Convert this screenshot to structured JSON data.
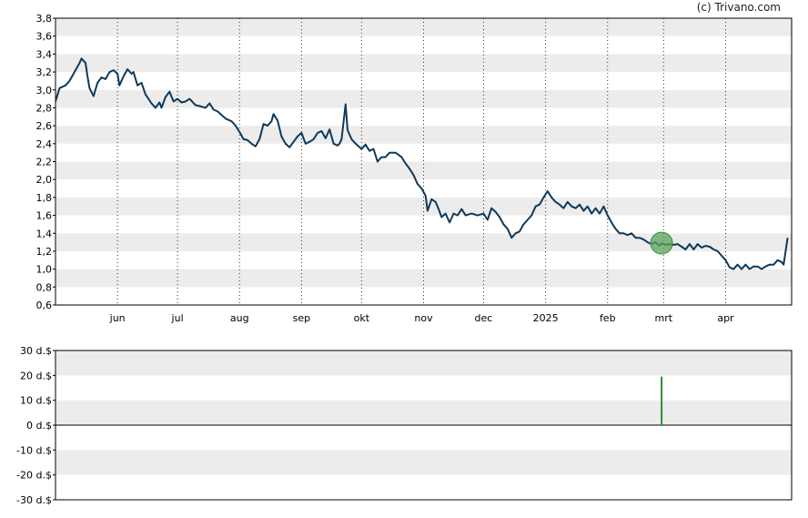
{
  "credit": "(c) Trivano.com",
  "chart_data": [
    {
      "type": "line",
      "title": "",
      "xlabel": "",
      "ylabel": "",
      "ylim": [
        0.6,
        3.8
      ],
      "y_ticks": [
        "3,8",
        "3,6",
        "3,4",
        "3,2",
        "3,0",
        "2,8",
        "2,6",
        "2,4",
        "2,2",
        "2,0",
        "1,8",
        "1,6",
        "1,4",
        "1,2",
        "1,0",
        "0,8",
        "0,6"
      ],
      "x_ticks": [
        {
          "label": "jun",
          "date": "2024-06-01"
        },
        {
          "label": "jul",
          "date": "2024-07-01"
        },
        {
          "label": "aug",
          "date": "2024-08-01"
        },
        {
          "label": "sep",
          "date": "2024-09-01"
        },
        {
          "label": "okt",
          "date": "2024-10-01"
        },
        {
          "label": "nov",
          "date": "2024-11-01"
        },
        {
          "label": "dec",
          "date": "2024-12-01"
        },
        {
          "label": "2025",
          "date": "2025-01-01"
        },
        {
          "label": "feb",
          "date": "2025-02-01"
        },
        {
          "label": "mrt",
          "date": "2025-03-01"
        },
        {
          "label": "apr",
          "date": "2025-04-01"
        }
      ],
      "xlim": [
        "2024-05-01",
        "2025-05-04"
      ],
      "grid": "alternating horizontal bands, dotted vertical lines",
      "line_color": "#0f3a5a",
      "marker": {
        "date": "2025-02-28",
        "value": 1.29,
        "color": "#5aa55a"
      },
      "series": [
        {
          "points": [
            [
              "2024-05-01",
              2.87
            ],
            [
              "2024-05-03",
              3.02
            ],
            [
              "2024-05-06",
              3.05
            ],
            [
              "2024-05-08",
              3.1
            ],
            [
              "2024-05-10",
              3.18
            ],
            [
              "2024-05-13",
              3.3
            ],
            [
              "2024-05-14",
              3.35
            ],
            [
              "2024-05-16",
              3.3
            ],
            [
              "2024-05-17",
              3.15
            ],
            [
              "2024-05-18",
              3.02
            ],
            [
              "2024-05-20",
              2.93
            ],
            [
              "2024-05-22",
              3.08
            ],
            [
              "2024-05-24",
              3.14
            ],
            [
              "2024-05-26",
              3.12
            ],
            [
              "2024-05-28",
              3.2
            ],
            [
              "2024-05-30",
              3.22
            ],
            [
              "2024-06-01",
              3.18
            ],
            [
              "2024-06-02",
              3.05
            ],
            [
              "2024-06-04",
              3.15
            ],
            [
              "2024-06-06",
              3.23
            ],
            [
              "2024-06-08",
              3.18
            ],
            [
              "2024-06-09",
              3.2
            ],
            [
              "2024-06-11",
              3.05
            ],
            [
              "2024-06-13",
              3.08
            ],
            [
              "2024-06-15",
              2.95
            ],
            [
              "2024-06-18",
              2.85
            ],
            [
              "2024-06-20",
              2.8
            ],
            [
              "2024-06-22",
              2.86
            ],
            [
              "2024-06-23",
              2.8
            ],
            [
              "2024-06-25",
              2.92
            ],
            [
              "2024-06-27",
              2.98
            ],
            [
              "2024-06-29",
              2.87
            ],
            [
              "2024-07-01",
              2.9
            ],
            [
              "2024-07-03",
              2.86
            ],
            [
              "2024-07-05",
              2.87
            ],
            [
              "2024-07-07",
              2.9
            ],
            [
              "2024-07-10",
              2.83
            ],
            [
              "2024-07-12",
              2.82
            ],
            [
              "2024-07-15",
              2.8
            ],
            [
              "2024-07-17",
              2.85
            ],
            [
              "2024-07-19",
              2.78
            ],
            [
              "2024-07-21",
              2.76
            ],
            [
              "2024-07-23",
              2.72
            ],
            [
              "2024-07-25",
              2.68
            ],
            [
              "2024-07-28",
              2.65
            ],
            [
              "2024-07-30",
              2.6
            ],
            [
              "2024-08-01",
              2.53
            ],
            [
              "2024-08-03",
              2.45
            ],
            [
              "2024-08-05",
              2.44
            ],
            [
              "2024-08-07",
              2.4
            ],
            [
              "2024-08-09",
              2.37
            ],
            [
              "2024-08-11",
              2.45
            ],
            [
              "2024-08-13",
              2.62
            ],
            [
              "2024-08-15",
              2.6
            ],
            [
              "2024-08-17",
              2.65
            ],
            [
              "2024-08-18",
              2.73
            ],
            [
              "2024-08-20",
              2.66
            ],
            [
              "2024-08-22",
              2.48
            ],
            [
              "2024-08-24",
              2.4
            ],
            [
              "2024-08-26",
              2.36
            ],
            [
              "2024-08-28",
              2.42
            ],
            [
              "2024-08-30",
              2.48
            ],
            [
              "2024-09-01",
              2.52
            ],
            [
              "2024-09-03",
              2.4
            ],
            [
              "2024-09-05",
              2.42
            ],
            [
              "2024-09-07",
              2.45
            ],
            [
              "2024-09-09",
              2.52
            ],
            [
              "2024-09-11",
              2.54
            ],
            [
              "2024-09-13",
              2.46
            ],
            [
              "2024-09-15",
              2.56
            ],
            [
              "2024-09-17",
              2.4
            ],
            [
              "2024-09-19",
              2.38
            ],
            [
              "2024-09-20",
              2.4
            ],
            [
              "2024-09-21",
              2.45
            ],
            [
              "2024-09-23",
              2.84
            ],
            [
              "2024-09-24",
              2.55
            ],
            [
              "2024-09-26",
              2.45
            ],
            [
              "2024-09-28",
              2.4
            ],
            [
              "2024-10-01",
              2.34
            ],
            [
              "2024-10-03",
              2.39
            ],
            [
              "2024-10-05",
              2.32
            ],
            [
              "2024-10-07",
              2.34
            ],
            [
              "2024-10-09",
              2.2
            ],
            [
              "2024-10-11",
              2.25
            ],
            [
              "2024-10-13",
              2.25
            ],
            [
              "2024-10-15",
              2.3
            ],
            [
              "2024-10-18",
              2.3
            ],
            [
              "2024-10-21",
              2.25
            ],
            [
              "2024-10-23",
              2.18
            ],
            [
              "2024-10-25",
              2.12
            ],
            [
              "2024-10-27",
              2.05
            ],
            [
              "2024-10-29",
              1.95
            ],
            [
              "2024-10-31",
              1.9
            ],
            [
              "2024-11-02",
              1.82
            ],
            [
              "2024-11-03",
              1.65
            ],
            [
              "2024-11-05",
              1.78
            ],
            [
              "2024-11-07",
              1.75
            ],
            [
              "2024-11-08",
              1.7
            ],
            [
              "2024-11-10",
              1.58
            ],
            [
              "2024-11-12",
              1.62
            ],
            [
              "2024-11-14",
              1.52
            ],
            [
              "2024-11-16",
              1.62
            ],
            [
              "2024-11-18",
              1.6
            ],
            [
              "2024-11-20",
              1.67
            ],
            [
              "2024-11-22",
              1.6
            ],
            [
              "2024-11-25",
              1.62
            ],
            [
              "2024-11-28",
              1.6
            ],
            [
              "2024-12-01",
              1.62
            ],
            [
              "2024-12-03",
              1.55
            ],
            [
              "2024-12-05",
              1.68
            ],
            [
              "2024-12-07",
              1.64
            ],
            [
              "2024-12-09",
              1.58
            ],
            [
              "2024-12-11",
              1.5
            ],
            [
              "2024-12-13",
              1.45
            ],
            [
              "2024-12-15",
              1.35
            ],
            [
              "2024-12-17",
              1.4
            ],
            [
              "2024-12-19",
              1.42
            ],
            [
              "2024-12-21",
              1.5
            ],
            [
              "2024-12-23",
              1.55
            ],
            [
              "2024-12-25",
              1.6
            ],
            [
              "2024-12-27",
              1.7
            ],
            [
              "2024-12-29",
              1.72
            ],
            [
              "2024-12-31",
              1.8
            ],
            [
              "2025-01-02",
              1.87
            ],
            [
              "2025-01-04",
              1.8
            ],
            [
              "2025-01-06",
              1.75
            ],
            [
              "2025-01-08",
              1.72
            ],
            [
              "2025-01-10",
              1.68
            ],
            [
              "2025-01-12",
              1.75
            ],
            [
              "2025-01-14",
              1.7
            ],
            [
              "2025-01-16",
              1.68
            ],
            [
              "2025-01-18",
              1.72
            ],
            [
              "2025-01-20",
              1.65
            ],
            [
              "2025-01-22",
              1.7
            ],
            [
              "2025-01-24",
              1.62
            ],
            [
              "2025-01-26",
              1.68
            ],
            [
              "2025-01-28",
              1.62
            ],
            [
              "2025-01-30",
              1.7
            ],
            [
              "2025-02-01",
              1.6
            ],
            [
              "2025-02-03",
              1.52
            ],
            [
              "2025-02-05",
              1.45
            ],
            [
              "2025-02-07",
              1.4
            ],
            [
              "2025-02-09",
              1.4
            ],
            [
              "2025-02-11",
              1.38
            ],
            [
              "2025-02-13",
              1.4
            ],
            [
              "2025-02-15",
              1.35
            ],
            [
              "2025-02-17",
              1.35
            ],
            [
              "2025-02-19",
              1.33
            ],
            [
              "2025-02-21",
              1.3
            ],
            [
              "2025-02-23",
              1.28
            ],
            [
              "2025-02-25",
              1.3
            ],
            [
              "2025-02-27",
              1.26
            ],
            [
              "2025-02-28",
              1.29
            ],
            [
              "2025-03-02",
              1.27
            ],
            [
              "2025-03-04",
              1.28
            ],
            [
              "2025-03-06",
              1.27
            ],
            [
              "2025-03-08",
              1.28
            ],
            [
              "2025-03-10",
              1.25
            ],
            [
              "2025-03-12",
              1.22
            ],
            [
              "2025-03-14",
              1.28
            ],
            [
              "2025-03-16",
              1.22
            ],
            [
              "2025-03-18",
              1.28
            ],
            [
              "2025-03-20",
              1.24
            ],
            [
              "2025-03-22",
              1.26
            ],
            [
              "2025-03-24",
              1.25
            ],
            [
              "2025-03-26",
              1.22
            ],
            [
              "2025-03-28",
              1.2
            ],
            [
              "2025-03-30",
              1.15
            ],
            [
              "2025-04-01",
              1.1
            ],
            [
              "2025-04-03",
              1.02
            ],
            [
              "2025-04-05",
              1.0
            ],
            [
              "2025-04-07",
              1.05
            ],
            [
              "2025-04-09",
              1.0
            ],
            [
              "2025-04-11",
              1.05
            ],
            [
              "2025-04-13",
              1.0
            ],
            [
              "2025-04-15",
              1.03
            ],
            [
              "2025-04-17",
              1.03
            ],
            [
              "2025-04-19",
              1.0
            ],
            [
              "2025-04-21",
              1.03
            ],
            [
              "2025-04-23",
              1.05
            ],
            [
              "2025-04-25",
              1.05
            ],
            [
              "2025-04-27",
              1.1
            ],
            [
              "2025-04-29",
              1.08
            ],
            [
              "2025-04-30",
              1.05
            ],
            [
              "2025-05-02",
              1.35
            ]
          ]
        }
      ]
    },
    {
      "type": "bar",
      "title": "",
      "xlabel": "",
      "ylabel": "",
      "ylim": [
        -30,
        30
      ],
      "y_ticks": [
        "30 d.$",
        "20 d.$",
        "10 d.$",
        "0 d.$",
        "-10 d.$",
        "-20 d.$",
        "-30 d.$"
      ],
      "grid": "alternating horizontal bands",
      "bar_color": "#2e8b3a",
      "bars": [
        {
          "date": "2025-02-28",
          "value": 19.5
        }
      ]
    }
  ]
}
